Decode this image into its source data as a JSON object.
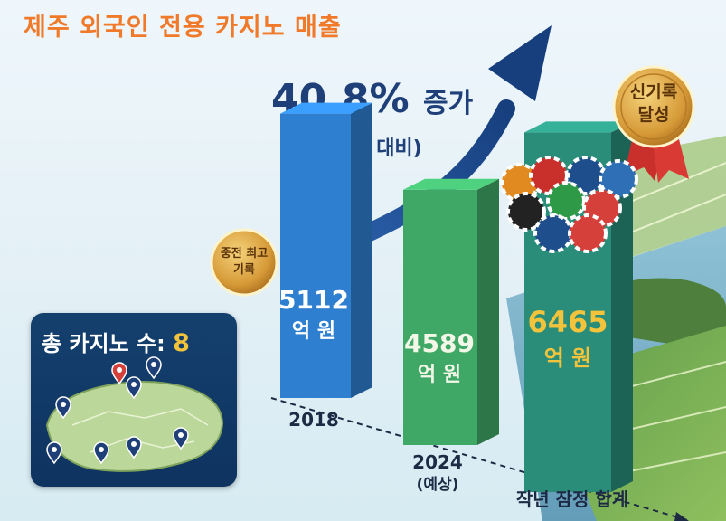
{
  "title": "제주 외국인 전용 카지노 매출",
  "growth": {
    "percent": "40.8%",
    "word": "증가",
    "note": "(전년 대비)"
  },
  "badges": {
    "record": "신기록\n달성",
    "mid_high": "중전 최고\n기록"
  },
  "casino_count": {
    "label": "총 카지노 수:",
    "value": "8",
    "map_pins": 8
  },
  "chart_data": {
    "type": "bar",
    "categories": [
      "2018",
      "2024\n(예상)",
      "작년 잠정 합계"
    ],
    "values": [
      5112,
      4589,
      6465
    ],
    "value_labels": [
      "5112",
      "4589",
      "6465"
    ],
    "unit": "억 원",
    "colors": [
      "#2f7fd0",
      "#3fa866",
      "#2a8d7a"
    ],
    "title": "",
    "xlabel": "",
    "ylabel": ""
  }
}
